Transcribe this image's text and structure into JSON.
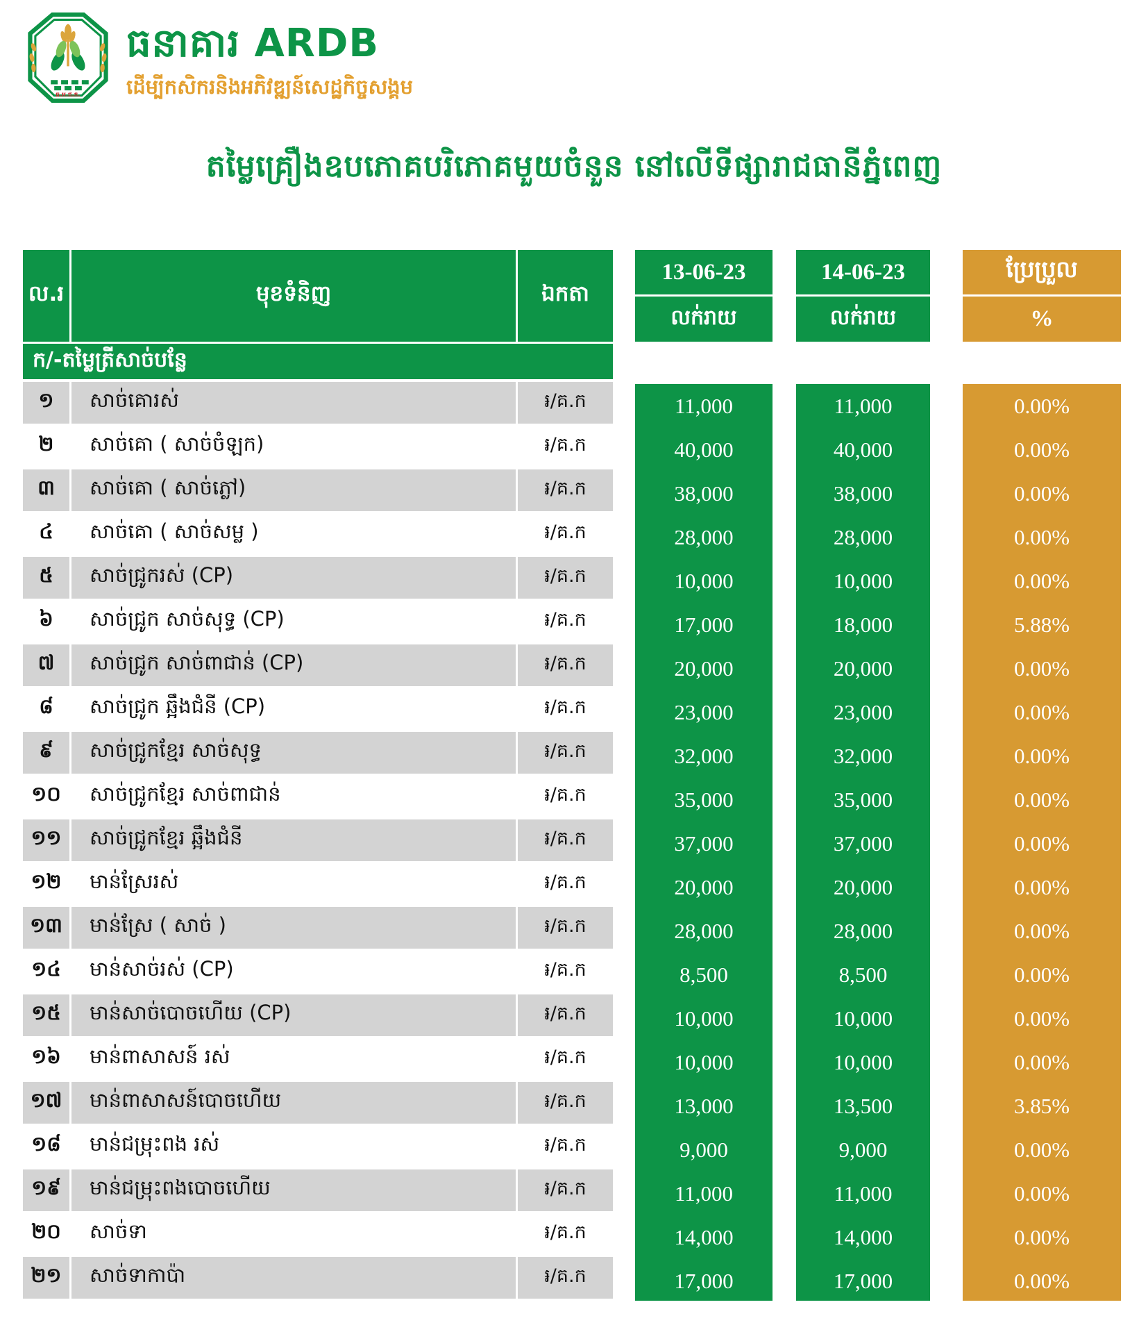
{
  "brand": {
    "name_khmer": "ធនាគារ",
    "name_latin": "ARDB",
    "name_full": "ធនាគារ ARDB",
    "tagline": "ដើម្បីកសិករនិងអភិវឌ្ឍន៍សេដ្ឋកិច្ចសង្គម",
    "logo_caption": "ធ.អ.ជ.ក."
  },
  "title": "តម្លៃគ្រឿងឧបភោគបរិភោគមួយចំនួន នៅលើទីផ្សារាជធានីភ្នំពេញ",
  "colors": {
    "brand_green": "#0d9447",
    "accent_gold": "#d79a32",
    "row_grey": "#d3d3d3"
  },
  "table": {
    "headers": {
      "no": "ល.រ",
      "item": "មុខទំនិញ",
      "unit": "ឯកតា",
      "date1": "13-06-23",
      "date2": "14-06-23",
      "retail1": "លក់រាយ",
      "retail2": "លក់រាយ",
      "change": "ប្រែប្រួល",
      "percent": "%"
    },
    "section": "ក/-តម្លៃត្រីសាច់បន្លែ",
    "rows": [
      {
        "no": "១",
        "item": "សាច់គោរស់",
        "unit": "៛/គ.ក",
        "price1": "11,000",
        "price2": "11,000",
        "change": "0.00%"
      },
      {
        "no": "២",
        "item": "សាច់គោ ( សាច់ចំឡក)",
        "unit": "៛/គ.ក",
        "price1": "40,000",
        "price2": "40,000",
        "change": "0.00%"
      },
      {
        "no": "៣",
        "item": "សាច់គោ ( សាច់ភ្លៅ)",
        "unit": "៛/គ.ក",
        "price1": "38,000",
        "price2": "38,000",
        "change": "0.00%"
      },
      {
        "no": "៤",
        "item": "សាច់គោ ( សាច់សម្ល )",
        "unit": "៛/គ.ក",
        "price1": "28,000",
        "price2": "28,000",
        "change": "0.00%"
      },
      {
        "no": "៥",
        "item": "សាច់ជ្រូករស់ (CP)",
        "unit": "៛/គ.ក",
        "price1": "10,000",
        "price2": "10,000",
        "change": "0.00%"
      },
      {
        "no": "៦",
        "item": "សាច់ជ្រូក សាច់សុទ្ធ (CP)",
        "unit": "៛/គ.ក",
        "price1": "17,000",
        "price2": "18,000",
        "change": "5.88%"
      },
      {
        "no": "៧",
        "item": "សាច់ជ្រូក សាច់ពាជាន់ (CP)",
        "unit": "៛/គ.ក",
        "price1": "20,000",
        "price2": "20,000",
        "change": "0.00%"
      },
      {
        "no": "៨",
        "item": "សាច់ជ្រូក ឆ្អឹងជំនី (CP)",
        "unit": "៛/គ.ក",
        "price1": "23,000",
        "price2": "23,000",
        "change": "0.00%"
      },
      {
        "no": "៩",
        "item": "សាច់ជ្រូកខ្មែរ សាច់សុទ្ធ",
        "unit": "៛/គ.ក",
        "price1": "32,000",
        "price2": "32,000",
        "change": "0.00%"
      },
      {
        "no": "១០",
        "item": "សាច់ជ្រូកខ្មែរ សាច់ពាជាន់",
        "unit": "៛/គ.ក",
        "price1": "35,000",
        "price2": "35,000",
        "change": "0.00%"
      },
      {
        "no": "១១",
        "item": "សាច់ជ្រូកខ្មែរ ឆ្អឹងជំនី",
        "unit": "៛/គ.ក",
        "price1": "37,000",
        "price2": "37,000",
        "change": "0.00%"
      },
      {
        "no": "១២",
        "item": "មាន់ស្រែរស់",
        "unit": "៛/គ.ក",
        "price1": "20,000",
        "price2": "20,000",
        "change": "0.00%"
      },
      {
        "no": "១៣",
        "item": "មាន់ស្រែ ( សាច់ )",
        "unit": "៛/គ.ក",
        "price1": "28,000",
        "price2": "28,000",
        "change": "0.00%"
      },
      {
        "no": "១៤",
        "item": "មាន់សាច់រស់ (CP)",
        "unit": "៛/គ.ក",
        "price1": "8,500",
        "price2": "8,500",
        "change": "0.00%"
      },
      {
        "no": "១៥",
        "item": "មាន់សាច់បោចហើយ (CP)",
        "unit": "៛/គ.ក",
        "price1": "10,000",
        "price2": "10,000",
        "change": "0.00%"
      },
      {
        "no": "១៦",
        "item": "មាន់ពាសាសន៍ រស់",
        "unit": "៛/គ.ក",
        "price1": "10,000",
        "price2": "10,000",
        "change": "0.00%"
      },
      {
        "no": "១៧",
        "item": "មាន់ពាសាសន៍បោចហើយ",
        "unit": "៛/គ.ក",
        "price1": "13,000",
        "price2": "13,500",
        "change": "3.85%"
      },
      {
        "no": "១៨",
        "item": "មាន់ជម្រុះពង រស់",
        "unit": "៛/គ.ក",
        "price1": "9,000",
        "price2": "9,000",
        "change": "0.00%"
      },
      {
        "no": "១៩",
        "item": "មាន់ជម្រុះពងបោចហើយ",
        "unit": "៛/គ.ក",
        "price1": "11,000",
        "price2": "11,000",
        "change": "0.00%"
      },
      {
        "no": "២០",
        "item": "សាច់ទា",
        "unit": "៛/គ.ក",
        "price1": "14,000",
        "price2": "14,000",
        "change": "0.00%"
      },
      {
        "no": "២១",
        "item": "សាច់ទាកាប៉ា",
        "unit": "៛/គ.ក",
        "price1": "17,000",
        "price2": "17,000",
        "change": "0.00%"
      }
    ]
  }
}
